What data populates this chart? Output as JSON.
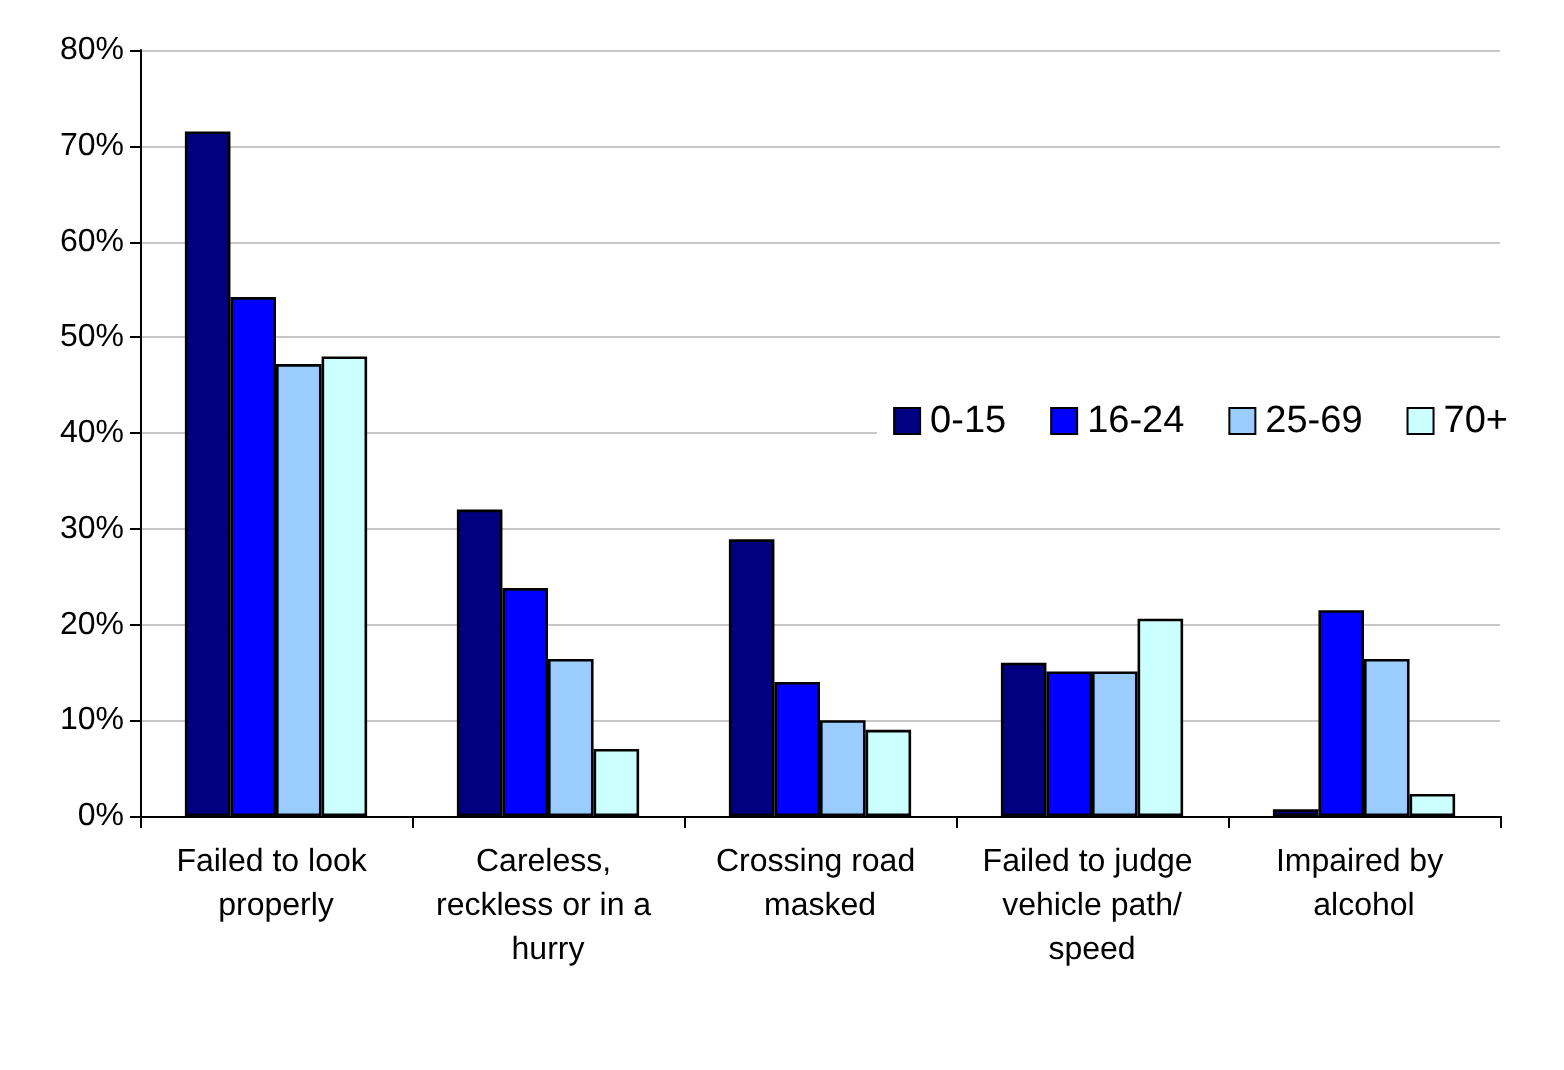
{
  "chart_data": {
    "type": "bar",
    "categories": [
      "Failed to look properly",
      "Careless, reckless or in a hurry",
      "Crossing road masked",
      "Failed to judge vehicle path/speed",
      "Impaired by alcohol"
    ],
    "series": [
      {
        "name": "0-15",
        "color": "#000080",
        "values": [
          71.5,
          32,
          28.9,
          16,
          0.7
        ]
      },
      {
        "name": "16-24",
        "color": "#0000ff",
        "values": [
          54.2,
          23.8,
          14,
          15.1,
          21.5
        ]
      },
      {
        "name": "25-69",
        "color": "#99ccff",
        "values": [
          47.2,
          16.4,
          10,
          15.1,
          16.4
        ]
      },
      {
        "name": "70+",
        "color": "#ccffff",
        "values": [
          48,
          7,
          9,
          20.6,
          2.3
        ]
      }
    ],
    "ylim": [
      0,
      80
    ],
    "yticks": [
      {
        "value": 0,
        "label": "0%"
      },
      {
        "value": 10,
        "label": "10%"
      },
      {
        "value": 20,
        "label": "20%"
      },
      {
        "value": 30,
        "label": "30%"
      },
      {
        "value": 40,
        "label": "40%"
      },
      {
        "value": 50,
        "label": "50%"
      },
      {
        "value": 60,
        "label": "60%"
      },
      {
        "value": 70,
        "label": "70%"
      },
      {
        "value": 80,
        "label": "80%"
      }
    ],
    "grid": "y",
    "legend": "right"
  }
}
